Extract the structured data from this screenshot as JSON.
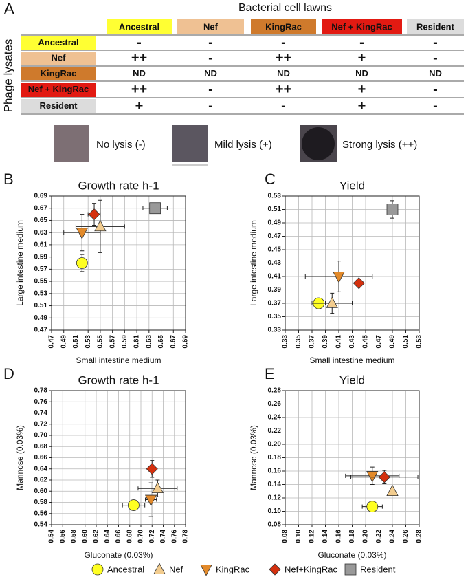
{
  "panel_a": {
    "panel_label": "A",
    "title": "Bacterial cell lawns",
    "row_header": "Phage lysates",
    "columns": [
      {
        "label": "Ancestral",
        "color": "#ffff33"
      },
      {
        "label": "Nef",
        "color": "#efc193"
      },
      {
        "label": "KingRac",
        "color": "#cf7a2c"
      },
      {
        "label": "Nef + KingRac",
        "color": "#e21a12"
      },
      {
        "label": "Resident",
        "color": "#dcdcdc"
      }
    ],
    "rows": [
      {
        "label": "Ancestral",
        "color": "#ffff33",
        "cells": [
          "-",
          "-",
          "-",
          "-",
          "-"
        ]
      },
      {
        "label": "Nef",
        "color": "#efc193",
        "cells": [
          "++",
          "-",
          "++",
          "+",
          "-"
        ]
      },
      {
        "label": "KingRac",
        "color": "#cf7a2c",
        "cells": [
          "ND",
          "ND",
          "ND",
          "ND",
          "ND"
        ]
      },
      {
        "label": "Nef + KingRac",
        "color": "#e21a12",
        "cells": [
          "++",
          "-",
          "++",
          "+",
          "-"
        ]
      },
      {
        "label": "Resident",
        "color": "#dcdcdc",
        "cells": [
          "+",
          "-",
          "-",
          "+",
          "-"
        ]
      }
    ],
    "lysis_key": [
      "No lysis (-)",
      "Mild lysis (+)",
      "Strong lysis (++)"
    ]
  },
  "legend": [
    {
      "name": "Ancestral",
      "color": "#ffff22",
      "shape": "circle"
    },
    {
      "name": "Nef",
      "color": "#f2cc8e",
      "shape": "triangle"
    },
    {
      "name": "KingRac",
      "color": "#e38a2a",
      "shape": "triangle-down"
    },
    {
      "name": "Nef+KingRac",
      "color": "#d4300e",
      "shape": "diamond"
    },
    {
      "name": "Resident",
      "color": "#999999",
      "shape": "square"
    }
  ],
  "chart_data": [
    {
      "type": "scatter",
      "panel_label": "B",
      "title": "Growth rate h-1",
      "xlabel": "Small intestine medium",
      "ylabel": "Large intestine medium",
      "grid": true,
      "xlim": [
        0.47,
        0.69
      ],
      "ylim": [
        0.47,
        0.69
      ],
      "xticks": [
        0.47,
        0.49,
        0.51,
        0.53,
        0.55,
        0.57,
        0.59,
        0.61,
        0.63,
        0.65,
        0.67,
        0.69
      ],
      "yticks": [
        0.47,
        0.49,
        0.51,
        0.53,
        0.55,
        0.57,
        0.59,
        0.61,
        0.63,
        0.65,
        0.67,
        0.69
      ],
      "x": [
        0.52,
        0.55,
        0.52,
        0.54,
        0.64
      ],
      "values": [
        0.58,
        0.64,
        0.63,
        0.66,
        0.67
      ],
      "x_error": [
        null,
        0.04,
        0.03,
        0.01,
        0.02
      ],
      "y_error": [
        0.014,
        0.043,
        0.03,
        0.018,
        null
      ]
    },
    {
      "type": "scatter",
      "panel_label": "C",
      "title": "Yield",
      "xlabel": "Small intestine medium",
      "ylabel": "Large intestine medium",
      "grid": true,
      "xlim": [
        0.33,
        0.53
      ],
      "ylim": [
        0.33,
        0.53
      ],
      "xticks": [
        0.33,
        0.35,
        0.37,
        0.39,
        0.41,
        0.43,
        0.45,
        0.47,
        0.49,
        0.51,
        0.53
      ],
      "yticks": [
        0.33,
        0.35,
        0.37,
        0.39,
        0.41,
        0.43,
        0.45,
        0.47,
        0.49,
        0.51,
        0.53
      ],
      "x": [
        0.38,
        0.4,
        0.41,
        0.44,
        0.49
      ],
      "values": [
        0.37,
        0.37,
        0.41,
        0.4,
        0.51
      ],
      "x_error": [
        0.01,
        0.03,
        0.05,
        0.005,
        null
      ],
      "y_error": [
        0.005,
        0.015,
        0.023,
        null,
        0.013
      ]
    },
    {
      "type": "scatter",
      "panel_label": "D",
      "title": "Growth rate h-1",
      "xlabel": "Gluconate (0.03%)",
      "ylabel": "Mannose (0.03%)",
      "grid": true,
      "xlim": [
        0.54,
        0.78
      ],
      "ylim": [
        0.54,
        0.78
      ],
      "xticks": [
        0.54,
        0.56,
        0.58,
        {
          "value": 0.6,
          "label": "0.60"
        },
        0.62,
        0.64,
        0.66,
        0.68,
        {
          "value": 0.7,
          "label": "0.70"
        },
        0.72,
        0.74,
        0.76,
        0.78
      ],
      "yticks": [
        0.54,
        0.56,
        0.58,
        {
          "value": 0.6,
          "label": "0.60"
        },
        0.62,
        0.64,
        0.66,
        0.68,
        {
          "value": 0.7,
          "label": "0.70"
        },
        0.72,
        0.74,
        0.76,
        0.78
      ],
      "x": [
        0.687,
        0.73,
        0.718,
        0.72,
        null
      ],
      "values": [
        0.575,
        0.605,
        0.585,
        0.64,
        null
      ],
      "x_error": [
        0.02,
        0.035,
        0.01,
        null,
        null
      ],
      "y_error": [
        null,
        0.015,
        0.03,
        0.015,
        null
      ]
    },
    {
      "type": "scatter",
      "panel_label": "E",
      "title": "Yield",
      "xlabel": "Gluconate (0.03%)",
      "ylabel": "Mannose (0.03%)",
      "grid": true,
      "xlim": [
        0.08,
        0.28
      ],
      "ylim": [
        0.08,
        0.28
      ],
      "xticks": [
        0.08,
        {
          "value": 0.1,
          "label": "0.10"
        },
        0.12,
        0.14,
        0.16,
        0.18,
        {
          "value": 0.2,
          "label": "0.20"
        },
        0.22,
        0.24,
        0.26,
        0.28
      ],
      "yticks": [
        0.08,
        {
          "value": 0.1,
          "label": "0.10"
        },
        0.12,
        0.14,
        0.16,
        0.18,
        {
          "value": 0.2,
          "label": "0.20"
        },
        0.22,
        0.24,
        0.26,
        0.28
      ],
      "x": [
        0.21,
        0.24,
        0.21,
        0.228,
        null
      ],
      "values": [
        0.107,
        0.13,
        0.153,
        0.151,
        null
      ],
      "x_error": [
        0.015,
        null,
        0.04,
        0.05,
        null
      ],
      "y_error": [
        null,
        null,
        0.013,
        0.01,
        null
      ]
    }
  ]
}
